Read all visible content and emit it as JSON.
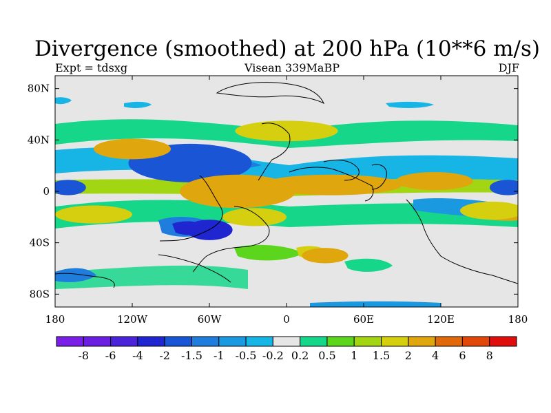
{
  "title": "Divergence (smoothed) at 200 hPa (10**6 m/s)",
  "subtitle_left": "Expt = tdsxg",
  "subtitle_center": "Visean 339MaBP",
  "subtitle_right": "DJF",
  "chart_data": {
    "type": "heatmap",
    "title": "Divergence (smoothed) at 200 hPa (10**6 m/s)",
    "projection": "cylindrical equidistant",
    "xlim": [
      -180,
      180
    ],
    "ylim": [
      -90,
      90
    ],
    "x_ticks": [
      {
        "value": -180,
        "label": "180"
      },
      {
        "value": -120,
        "label": "120W"
      },
      {
        "value": -60,
        "label": "60W"
      },
      {
        "value": 0,
        "label": "0"
      },
      {
        "value": 60,
        "label": "60E"
      },
      {
        "value": 120,
        "label": "120E"
      },
      {
        "value": 180,
        "label": "180"
      }
    ],
    "y_ticks": [
      {
        "value": 80,
        "label": "80N"
      },
      {
        "value": 40,
        "label": "40N"
      },
      {
        "value": 0,
        "label": "0"
      },
      {
        "value": -40,
        "label": "40S"
      },
      {
        "value": -80,
        "label": "80S"
      }
    ],
    "colorbar": {
      "colors": [
        "#7a1fe6",
        "#6a1ee0",
        "#4b23d8",
        "#1f25cf",
        "#1a55d6",
        "#1e7ddd",
        "#1a98e0",
        "#17b4e6",
        "#e6e6e6",
        "#16d68a",
        "#5cd61c",
        "#a2d612",
        "#d6cf10",
        "#e0a60e",
        "#e06a0a",
        "#e0480a",
        "#e00d0d"
      ],
      "levels": [
        "-8",
        "-6",
        "-4",
        "-2",
        "-1.5",
        "-1",
        "-0.5",
        "-0.2",
        "0.2",
        "0.5",
        "1",
        "1.5",
        "2",
        "4",
        "6",
        "8"
      ]
    },
    "features": [
      {
        "lon": -65,
        "lat": 22,
        "rx": 34,
        "ry": 10,
        "level": 3
      },
      {
        "lon": -75,
        "lat": 22,
        "rx": 48,
        "ry": 15,
        "level": 4
      },
      {
        "lon": -170,
        "lat": 3,
        "rx": 14,
        "ry": 6,
        "level": 4
      },
      {
        "lon": 172,
        "lat": 3,
        "rx": 14,
        "ry": 6,
        "level": 4
      },
      {
        "lon": -40,
        "lat": -2,
        "rx": 26,
        "ry": 9,
        "level": 15
      },
      {
        "lon": -38,
        "lat": 0,
        "rx": 45,
        "ry": 13,
        "level": 13
      },
      {
        "lon": 35,
        "lat": 5,
        "rx": 55,
        "ry": 8,
        "level": 13
      },
      {
        "lon": 115,
        "lat": 8,
        "rx": 30,
        "ry": 7,
        "level": 13
      },
      {
        "lon": -150,
        "lat": -18,
        "rx": 30,
        "ry": 7,
        "level": 12
      },
      {
        "lon": 160,
        "lat": -15,
        "rx": 25,
        "ry": 7,
        "level": 12
      },
      {
        "lon": -120,
        "lat": 33,
        "rx": 30,
        "ry": 8,
        "level": 13
      },
      {
        "lon": 0,
        "lat": 47,
        "rx": 40,
        "ry": 8,
        "level": 12
      },
      {
        "lon": -60,
        "lat": -30,
        "rx": 18,
        "ry": 8,
        "level": 3
      },
      {
        "lon": -25,
        "lat": -20,
        "rx": 25,
        "ry": 7,
        "level": 12
      },
      {
        "lon": 30,
        "lat": -50,
        "rx": 18,
        "ry": 6,
        "level": 13
      }
    ]
  }
}
